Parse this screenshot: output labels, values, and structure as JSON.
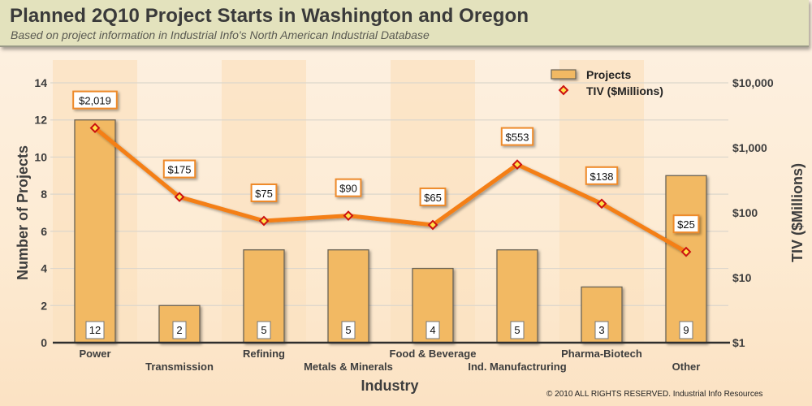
{
  "header": {
    "title": "Planned 2Q10 Project Starts in Washington and Oregon",
    "subtitle": "Based on project information in Industrial Info's North American Industrial Database"
  },
  "footer": {
    "copyright": "© 2010 ALL RIGHTS RESERVED. Industrial Info Resources"
  },
  "colors": {
    "bar_fill": "#f2b964",
    "bar_stroke": "#6b6355",
    "line": "#f47f16",
    "marker_stroke": "#cc1010",
    "marker_fill": "#ffe24a",
    "band": "#fbe1c0",
    "grid": "#dcd6cc",
    "label_border": "#ee8a2a"
  },
  "chart_data": {
    "type": "bar",
    "title": "Planned 2Q10 Project Starts in Washington and Oregon",
    "subtitle": "Based on project information in Industrial Info's North American Industrial Database",
    "xlabel": "Industry",
    "ylabel": "Number of Projects",
    "y2label": "TIV ($Millions)",
    "categories": [
      "Power",
      "Transmission",
      "Refining",
      "Metals & Minerals",
      "Food & Beverage",
      "Ind. Manufactruring",
      "Pharma-Biotech",
      "Other"
    ],
    "series": [
      {
        "name": "Projects",
        "type": "bar",
        "axis": "left",
        "values": [
          12,
          2,
          5,
          5,
          4,
          5,
          3,
          9
        ],
        "labels": [
          "12",
          "2",
          "5",
          "5",
          "4",
          "5",
          "3",
          "9"
        ]
      },
      {
        "name": "TIV ($Millions)",
        "type": "line",
        "axis": "right",
        "values": [
          2019,
          175,
          75,
          90,
          65,
          553,
          138,
          25
        ],
        "labels": [
          "$2,019",
          "$175",
          "$75",
          "$90",
          "$65",
          "$553",
          "$138",
          "$25"
        ]
      }
    ],
    "ylim": [
      0,
      14
    ],
    "yticks": [
      0,
      2,
      4,
      6,
      8,
      10,
      12,
      14
    ],
    "y2scale": "log",
    "y2lim": [
      1,
      10000
    ],
    "y2ticks": [
      1,
      10,
      100,
      1000,
      10000
    ],
    "y2ticklabels": [
      "$1",
      "$10",
      "$100",
      "$1,000",
      "$10,000"
    ],
    "grid": true,
    "legend": {
      "position": "top-right",
      "entries": [
        "Projects",
        "TIV ($Millions)"
      ]
    }
  }
}
